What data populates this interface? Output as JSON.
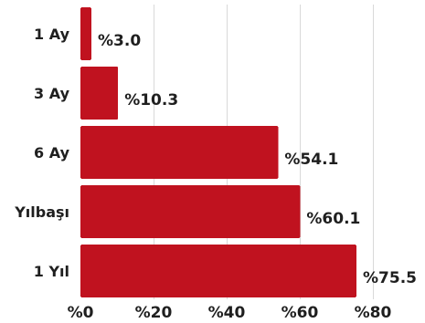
{
  "chart_data": {
    "type": "bar",
    "orientation": "horizontal",
    "categories": [
      "1 Ay",
      "3 Ay",
      "6 Ay",
      "Yılbaşı",
      "1 Yıl"
    ],
    "values": [
      3.0,
      10.3,
      54.1,
      60.1,
      75.5
    ],
    "value_labels": [
      "%3.0",
      "%10.3",
      "%54.1",
      "%60.1",
      "%75.5"
    ],
    "xlim": [
      0,
      80
    ],
    "xticks": [
      0,
      20,
      40,
      60,
      80
    ],
    "xtick_labels": [
      "%0",
      "%20",
      "%40",
      "%60",
      "%80"
    ],
    "grid": true,
    "bar_color": "#c0121f",
    "grid_color": "#d9d9d9",
    "text_color": "#1f1f1f"
  }
}
